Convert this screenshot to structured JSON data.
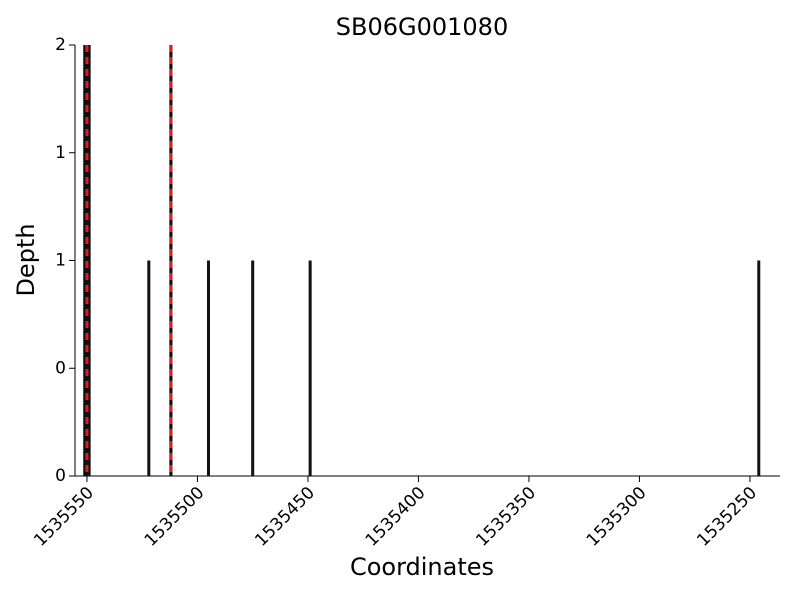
{
  "chart_data": {
    "type": "bar",
    "title": "SB06G001080",
    "xlabel": "Coordinates",
    "ylabel": "Depth",
    "x": [
      1535551,
      1535549,
      1535522,
      1535512,
      1535495,
      1535475,
      1535449,
      1535246
    ],
    "values": [
      2,
      2,
      1,
      2,
      1,
      1,
      1,
      1
    ],
    "color": "#111111",
    "markers": [
      1535550,
      1535512
    ],
    "marker_color": "#e41a1c",
    "xlim": [
      1535555.4,
      1535236.4
    ],
    "xticks": [
      1535550,
      1535500,
      1535450,
      1535400,
      1535350,
      1535300,
      1535250
    ],
    "ylim": [
      0,
      2
    ],
    "yticks": [
      0,
      {
        "value": 0.5,
        "label": "0"
      },
      1,
      {
        "value": 1.5,
        "label": "1"
      },
      2
    ]
  }
}
